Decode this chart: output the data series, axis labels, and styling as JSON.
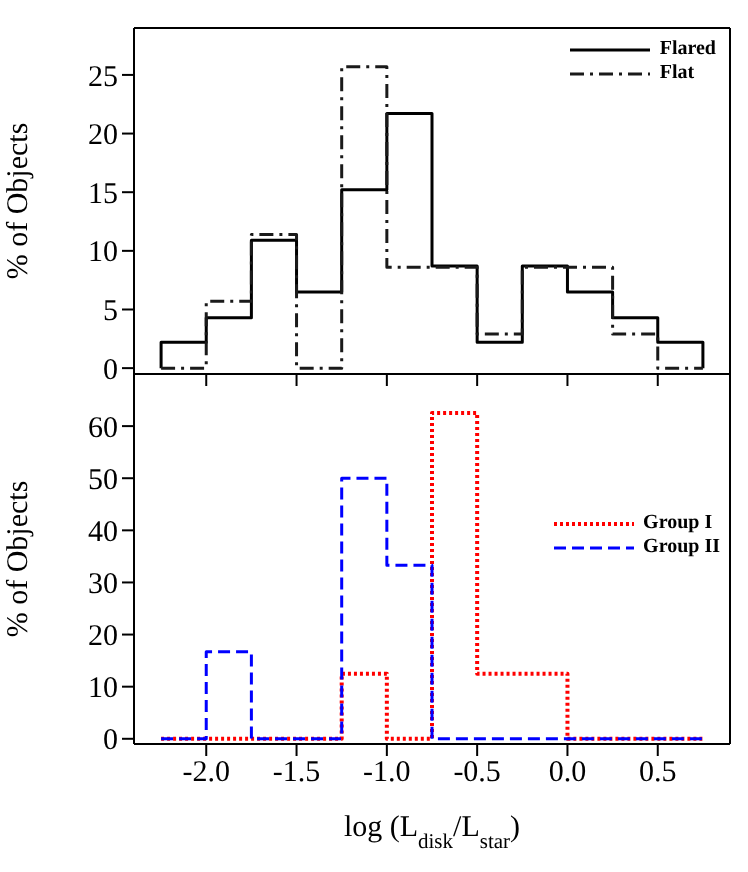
{
  "chart_data": [
    {
      "type": "histogram",
      "ylabel": "% of Objects",
      "bins": [
        -2.25,
        -2.0,
        -1.75,
        -1.5,
        -1.25,
        -1.0,
        -0.75,
        -0.5,
        -0.25,
        0.0,
        0.25,
        0.5,
        0.75
      ],
      "series": [
        {
          "name": "Flared",
          "color": "#000000",
          "line_style": "solid",
          "values": [
            2.2,
            4.3,
            10.9,
            6.5,
            15.2,
            21.7,
            8.7,
            2.2,
            8.7,
            6.5,
            4.3,
            2.2
          ]
        },
        {
          "name": "Flat",
          "color": "#1a1a1a",
          "line_style": "dashdot",
          "values": [
            0,
            5.7,
            11.4,
            0,
            25.7,
            8.6,
            8.6,
            2.9,
            8.6,
            8.6,
            2.9,
            0
          ]
        }
      ],
      "xlim": [
        -2.4,
        0.9
      ],
      "xticks": [
        {
          "value": -2,
          "label": null
        },
        {
          "value": -1.5,
          "label": null
        },
        {
          "value": -1,
          "label": null
        },
        {
          "value": -0.5,
          "label": null
        },
        {
          "value": 0,
          "label": null
        },
        {
          "value": 0.5,
          "label": null
        }
      ],
      "ylim": [
        -0.5,
        29
      ],
      "yticks": [
        0,
        5,
        10,
        15,
        20,
        25
      ],
      "tick_labels": "y",
      "legend": "top right",
      "grid": false
    },
    {
      "type": "histogram",
      "ylabel": "% of Objects",
      "xlabel": "log (L$_{disk}$/L$_{star}$)",
      "bins": [
        -2.25,
        -2.0,
        -1.75,
        -1.5,
        -1.25,
        -1.0,
        -0.75,
        -0.5,
        -0.25,
        0.0,
        0.25,
        0.5,
        0.75
      ],
      "series": [
        {
          "name": "Group I",
          "color": "#ff0000",
          "line_style": "dotted",
          "values": [
            0,
            0,
            0,
            0,
            12.5,
            0,
            62.5,
            12.5,
            12.5,
            0,
            0,
            0
          ]
        },
        {
          "name": "Group II",
          "color": "#0000ff",
          "line_style": "dashed",
          "values": [
            0,
            16.7,
            0,
            0,
            50,
            33.3,
            0,
            0,
            0,
            0,
            0,
            0
          ]
        }
      ],
      "xlim": [
        -2.4,
        0.9
      ],
      "xticks": [
        {
          "value": -2,
          "label": "-2.0"
        },
        {
          "value": -1.5,
          "label": "-1.5"
        },
        {
          "value": -1,
          "label": "-1.0"
        },
        {
          "value": -0.5,
          "label": "-0.5"
        },
        {
          "value": 0,
          "label": "0.0"
        },
        {
          "value": 0.5,
          "label": "0.5"
        }
      ],
      "ylim": [
        -1,
        70
      ],
      "yticks": [
        0,
        10,
        20,
        30,
        40,
        50,
        60
      ],
      "legend": "right",
      "grid": false
    }
  ]
}
